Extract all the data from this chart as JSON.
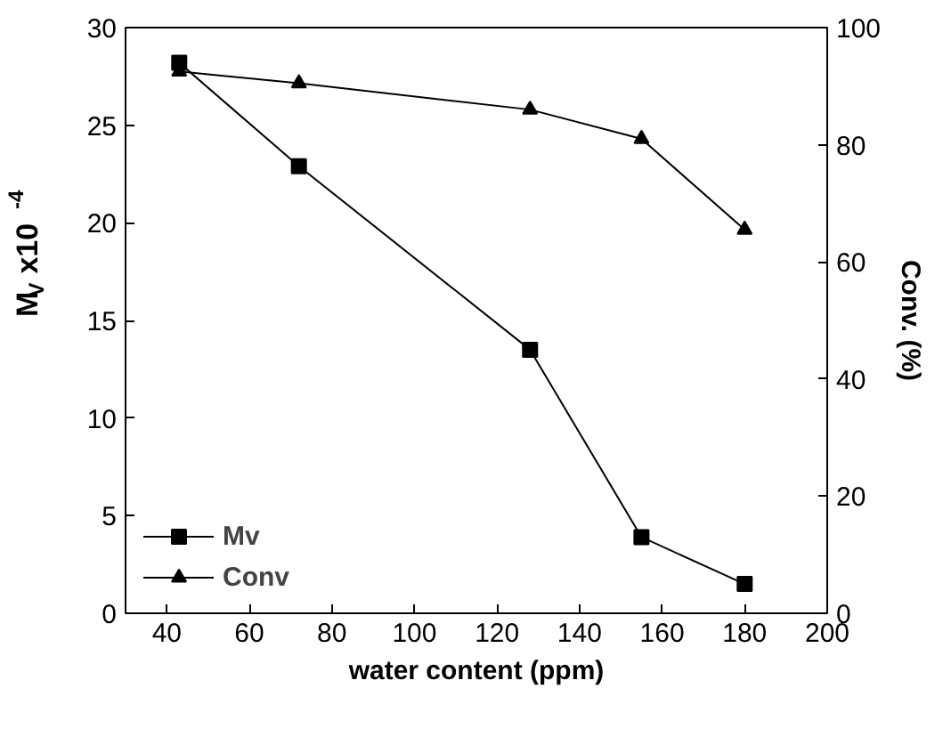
{
  "chart_data": {
    "type": "line",
    "xlabel": "water content (ppm)",
    "ylabel": "M$_{V}$ x10 $^{-4}$",
    "y2label": "Conv. (%)",
    "x": [
      43,
      72,
      128,
      155,
      180
    ],
    "series": [
      {
        "name": "Mv",
        "color": "#000000",
        "marker": "square",
        "values": [
          28.2,
          22.9,
          13.5,
          3.9,
          1.5
        ]
      },
      {
        "name": "Conv",
        "color": "#000000",
        "marker": "triangle",
        "axis": "y2",
        "values": [
          92.5,
          90.5,
          86,
          81,
          65.5
        ]
      }
    ],
    "xlim": [
      30,
      200
    ],
    "xticks": [
      40,
      60,
      80,
      100,
      120,
      140,
      160,
      180,
      200
    ],
    "ylim": [
      0,
      30
    ],
    "yticks": [
      0,
      5,
      10,
      15,
      20,
      25,
      30
    ],
    "y2lim": [
      0,
      100
    ],
    "y2ticks": [
      0,
      20,
      40,
      60,
      80,
      100
    ],
    "legend": "bottom left",
    "grid": false,
    "line_style": "solid"
  }
}
